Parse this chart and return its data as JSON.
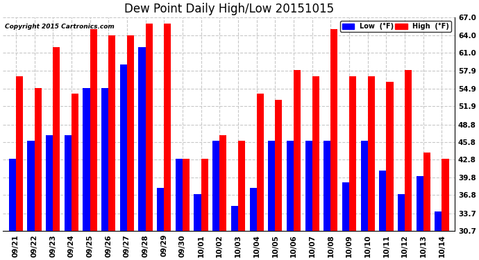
{
  "title": "Dew Point Daily High/Low 20151015",
  "copyright": "Copyright 2015 Cartronics.com",
  "dates": [
    "09/21",
    "09/22",
    "09/23",
    "09/24",
    "09/25",
    "09/26",
    "09/27",
    "09/28",
    "09/29",
    "09/30",
    "10/01",
    "10/02",
    "10/03",
    "10/04",
    "10/05",
    "10/06",
    "10/07",
    "10/08",
    "10/09",
    "10/10",
    "10/11",
    "10/12",
    "10/13",
    "10/14"
  ],
  "low": [
    43,
    46,
    47,
    47,
    55,
    55,
    59,
    62,
    38,
    43,
    37,
    46,
    35,
    38,
    46,
    46,
    46,
    46,
    39,
    46,
    41,
    37,
    40,
    34
  ],
  "high": [
    57,
    55,
    62,
    54,
    65,
    64,
    64,
    66,
    66,
    43,
    43,
    47,
    46,
    54,
    53,
    58,
    57,
    65,
    57,
    57,
    56,
    58,
    44,
    43
  ],
  "low_color": "#0000ff",
  "high_color": "#ff0000",
  "background_color": "#ffffff",
  "grid_color": "#c8c8c8",
  "ylim_min": 30.7,
  "ylim_max": 67.0,
  "yticks": [
    30.7,
    33.7,
    36.8,
    39.8,
    42.8,
    45.8,
    48.8,
    51.9,
    54.9,
    57.9,
    61.0,
    64.0,
    67.0
  ],
  "bar_width": 0.38,
  "title_fontsize": 12,
  "tick_fontsize": 7.5,
  "legend_label_low": "Low  (°F)",
  "legend_label_high": "High  (°F)"
}
